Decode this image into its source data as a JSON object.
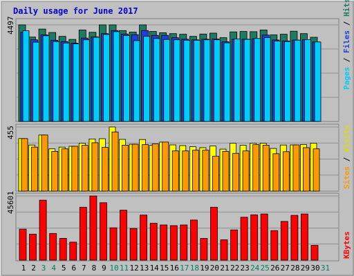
{
  "title": "Daily usage for June 2017",
  "colors": {
    "background": "#c0c0c0",
    "hits": "#1e7a60",
    "files": "#1f3fd9",
    "pages": "#00ccff",
    "visits": "#ffff00",
    "sites": "#ff9900",
    "kbytes": "#ff0000",
    "title": "#0000cc",
    "weekend_label": "#00805a",
    "weekday_label": "#000000"
  },
  "chart_data": [
    {
      "type": "bar",
      "name": "hits-files-pages",
      "ymax_label": "4497",
      "ylim": [
        0,
        4497
      ],
      "legend": [
        "Pages",
        "Files",
        "Hits"
      ],
      "categories": [
        "1",
        "2",
        "3",
        "4",
        "5",
        "6",
        "7",
        "8",
        "9",
        "10",
        "11",
        "12",
        "13",
        "14",
        "15",
        "16",
        "17",
        "18",
        "19",
        "20",
        "21",
        "22",
        "23",
        "24",
        "25",
        "26",
        "27",
        "28",
        "29",
        "30",
        "31"
      ],
      "series": [
        {
          "name": "Hits",
          "values": [
            4497,
            3930,
            4300,
            4140,
            3960,
            3820,
            4260,
            4150,
            4497,
            4497,
            4230,
            4160,
            4497,
            4190,
            4130,
            4090,
            4060,
            3960,
            4070,
            4110,
            3900,
            4170,
            4190,
            4180,
            4260,
            4030,
            4060,
            4200,
            4090,
            3920,
            null
          ]
        },
        {
          "name": "Files",
          "values": [
            4150,
            3800,
            4030,
            3780,
            3720,
            3650,
            3880,
            3940,
            4090,
            4230,
            4070,
            4040,
            4230,
            4010,
            4010,
            3900,
            3830,
            3800,
            3830,
            3840,
            3710,
            3830,
            3830,
            3850,
            4020,
            3790,
            3750,
            3790,
            3810,
            3700,
            null
          ]
        },
        {
          "name": "Pages",
          "values": [
            4220,
            3690,
            3990,
            3720,
            3650,
            3610,
            3800,
            3920,
            4050,
            4180,
            4000,
            3760,
            3960,
            3860,
            3820,
            3800,
            3780,
            3780,
            3800,
            3800,
            3660,
            3840,
            3820,
            3860,
            3900,
            3740,
            3720,
            3780,
            3810,
            3700,
            null
          ]
        }
      ]
    },
    {
      "type": "bar",
      "name": "visits-sites",
      "ymax_label": "455",
      "ylim": [
        0,
        455
      ],
      "legend": [
        "Sites",
        "Visits"
      ],
      "categories": [
        "1",
        "2",
        "3",
        "4",
        "5",
        "6",
        "7",
        "8",
        "9",
        "10",
        "11",
        "12",
        "13",
        "14",
        "15",
        "16",
        "17",
        "18",
        "19",
        "20",
        "21",
        "22",
        "23",
        "24",
        "25",
        "26",
        "27",
        "28",
        "29",
        "30",
        "31"
      ],
      "series": [
        {
          "name": "Visits",
          "values": [
            373,
            327,
            398,
            300,
            312,
            318,
            340,
            370,
            372,
            455,
            367,
            332,
            366,
            325,
            348,
            328,
            323,
            315,
            308,
            320,
            298,
            340,
            325,
            340,
            340,
            303,
            327,
            328,
            330,
            340,
            null
          ]
        },
        {
          "name": "Sites",
          "values": [
            373,
            312,
            398,
            282,
            300,
            318,
            325,
            343,
            310,
            420,
            326,
            332,
            330,
            335,
            348,
            285,
            285,
            290,
            290,
            248,
            282,
            268,
            285,
            330,
            326,
            265,
            280,
            328,
            308,
            300,
            null
          ]
        }
      ]
    },
    {
      "type": "bar",
      "name": "kbytes",
      "ymax_label": "45601",
      "ylim": [
        0,
        45601
      ],
      "legend": [
        "KBytes"
      ],
      "categories": [
        "1",
        "2",
        "3",
        "4",
        "5",
        "6",
        "7",
        "8",
        "9",
        "10",
        "11",
        "12",
        "13",
        "14",
        "15",
        "16",
        "17",
        "18",
        "19",
        "20",
        "21",
        "22",
        "23",
        "24",
        "25",
        "26",
        "27",
        "28",
        "29",
        "30",
        "31"
      ],
      "series": [
        {
          "name": "KBytes",
          "values": [
            22000,
            18500,
            42600,
            19000,
            15500,
            12800,
            37600,
            45601,
            40800,
            23000,
            35500,
            22500,
            32000,
            26200,
            25000,
            24500,
            25000,
            28500,
            15500,
            37600,
            14500,
            21500,
            30500,
            32200,
            32800,
            21000,
            27500,
            31800,
            32800,
            10500,
            null
          ]
        }
      ]
    }
  ],
  "x_labels": [
    "1",
    "2",
    "3",
    "4",
    "5",
    "6",
    "7",
    "8",
    "9",
    "10",
    "11",
    "12",
    "13",
    "14",
    "15",
    "16",
    "17",
    "18",
    "19",
    "20",
    "21",
    "22",
    "23",
    "24",
    "25",
    "26",
    "27",
    "28",
    "29",
    "30",
    "31"
  ],
  "weekend_days": [
    3,
    4,
    10,
    11,
    17,
    18,
    24,
    25,
    31
  ]
}
